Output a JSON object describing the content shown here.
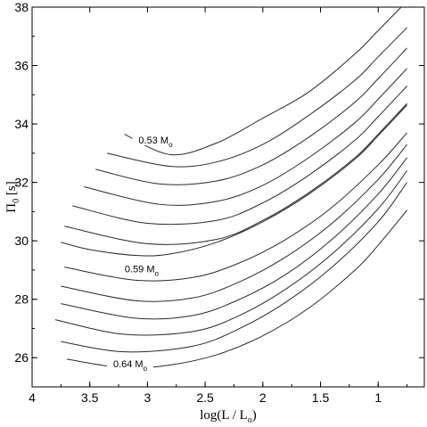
{
  "chart_data": {
    "type": "line",
    "title": "",
    "xlabel": "log(L / L",
    "xlabel_sub": "o",
    "xlabel_close": ")",
    "ylabel": "Π",
    "ylabel_sub": "0",
    "ylabel_unit": " [s]",
    "xlim": [
      4,
      0.6
    ],
    "ylim": [
      25,
      38
    ],
    "x_reversed": true,
    "grid": false,
    "legend": "none",
    "x_ticks": [
      4,
      3.5,
      3,
      2.5,
      2,
      1.5,
      1
    ],
    "x_tick_labels": [
      "4",
      "3.5",
      "3",
      "2.5",
      "2",
      "1.5",
      "1"
    ],
    "y_ticks": [
      26,
      28,
      30,
      32,
      34,
      36,
      38
    ],
    "y_tick_labels": [
      "26",
      "28",
      "30",
      "32",
      "34",
      "36",
      "38"
    ],
    "annotations": [
      {
        "text": "0.53 M",
        "sub": "o",
        "x": 2.93,
        "y": 33.45
      },
      {
        "text": "0.59 M",
        "sub": "o",
        "x": 3.05,
        "y": 29.05
      },
      {
        "text": "0.64 M",
        "sub": "o",
        "x": 3.15,
        "y": 25.8
      }
    ],
    "series": [
      {
        "x": [
          3.2,
          2.8,
          2.4,
          2.0,
          1.6,
          1.2,
          1.0,
          0.8
        ],
        "y": [
          33.65,
          32.95,
          33.35,
          34.2,
          35.1,
          36.4,
          37.2,
          38.0
        ]
      },
      {
        "x": [
          3.35,
          2.8,
          2.4,
          2.0,
          1.6,
          1.2,
          1.0,
          0.75
        ],
        "y": [
          33.0,
          32.55,
          32.7,
          33.3,
          34.3,
          35.5,
          36.3,
          37.3
        ]
      },
      {
        "x": [
          3.45,
          2.9,
          2.4,
          2.0,
          1.6,
          1.2,
          1.0,
          0.75
        ],
        "y": [
          32.45,
          31.95,
          32.05,
          32.6,
          33.55,
          34.75,
          35.55,
          36.6
        ]
      },
      {
        "x": [
          3.55,
          2.9,
          2.4,
          2.0,
          1.6,
          1.2,
          1.0,
          0.75
        ],
        "y": [
          31.85,
          31.25,
          31.35,
          31.9,
          32.85,
          34.05,
          34.85,
          35.9
        ]
      },
      {
        "x": [
          3.65,
          3.0,
          2.4,
          2.0,
          1.6,
          1.2,
          1.0,
          0.75
        ],
        "y": [
          31.2,
          30.6,
          30.7,
          31.3,
          32.25,
          33.45,
          34.25,
          35.3
        ]
      },
      {
        "x": [
          3.72,
          3.0,
          2.4,
          2.0,
          1.6,
          1.2,
          1.0,
          0.75
        ],
        "y": [
          30.5,
          29.9,
          30.05,
          30.7,
          31.65,
          32.85,
          33.65,
          34.7
        ]
      },
      {
        "x": [
          3.75,
          3.5,
          3.1,
          2.8,
          2.4,
          2.0,
          1.6,
          1.2,
          1.0,
          0.75
        ],
        "y": [
          29.95,
          29.7,
          29.5,
          29.55,
          29.95,
          30.65,
          31.6,
          32.8,
          33.6,
          34.65
        ]
      },
      {
        "x": [
          3.72,
          3.1,
          2.6,
          2.2,
          1.8,
          1.4,
          1.0,
          0.75
        ],
        "y": [
          29.1,
          28.65,
          28.75,
          29.25,
          30.05,
          31.15,
          32.6,
          33.7
        ]
      },
      {
        "x": [
          3.75,
          3.1,
          2.6,
          2.2,
          1.8,
          1.4,
          1.0,
          0.75
        ],
        "y": [
          28.45,
          27.95,
          28.05,
          28.6,
          29.45,
          30.6,
          32.1,
          33.3
        ]
      },
      {
        "x": [
          3.75,
          3.1,
          2.6,
          2.2,
          1.8,
          1.4,
          1.0,
          0.75
        ],
        "y": [
          27.85,
          27.35,
          27.45,
          28.0,
          28.85,
          30.05,
          31.6,
          32.85
        ]
      },
      {
        "x": [
          3.8,
          3.2,
          2.6,
          2.2,
          1.8,
          1.4,
          1.0,
          0.75
        ],
        "y": [
          27.3,
          26.8,
          26.9,
          27.45,
          28.35,
          29.55,
          31.1,
          32.4
        ]
      },
      {
        "x": [
          3.75,
          3.2,
          2.6,
          2.2,
          1.8,
          1.4,
          1.0,
          0.75
        ],
        "y": [
          26.55,
          26.2,
          26.4,
          27.0,
          27.9,
          29.1,
          30.65,
          32.0
        ]
      },
      {
        "x": [
          3.7,
          3.2,
          2.8,
          2.4,
          2.0,
          1.6,
          1.2,
          1.0,
          0.75
        ],
        "y": [
          25.95,
          25.65,
          25.75,
          26.1,
          26.75,
          27.7,
          29.0,
          29.85,
          31.05
        ]
      }
    ]
  }
}
